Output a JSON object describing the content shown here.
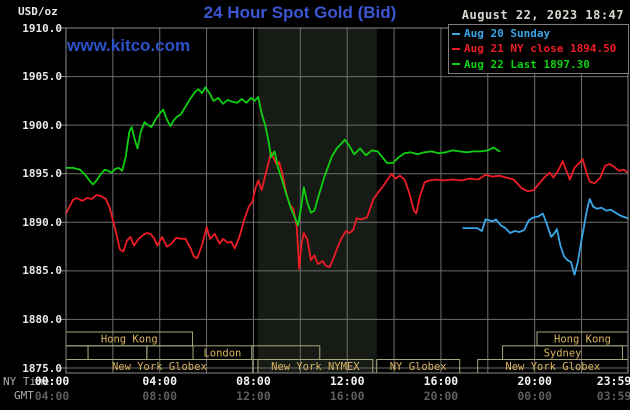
{
  "header": {
    "unit_label": "USD/oz",
    "title": "24 Hour Spot Gold (Bid)",
    "datetime": "August 22, 2023 18:47"
  },
  "watermark": "www.kitco.com",
  "legend": {
    "items": [
      {
        "label": "Aug 20 Sunday",
        "color": "#3aa6e8"
      },
      {
        "label": "Aug 21 NY close 1894.50",
        "color": "#ee1c25"
      },
      {
        "label": "Aug 22 Last 1897.30",
        "color": "#0fd00f"
      }
    ]
  },
  "y_axis": {
    "tick_labels": [
      "1910.0",
      "1905.0",
      "1900.0",
      "1895.0",
      "1890.0",
      "1885.0",
      "1880.0",
      "1875.0"
    ],
    "min": 1875,
    "max": 1910,
    "step": 5
  },
  "x_axis": {
    "ny_label": "NY Time",
    "gmt_label": "GMT",
    "tick_hours": [
      0,
      4,
      8,
      12,
      16,
      20,
      23.983
    ],
    "ny_times": [
      "00:00",
      "04:00",
      "08:00",
      "12:00",
      "16:00",
      "20:00",
      "23:59"
    ],
    "gmt_times": [
      "04:00",
      "08:00",
      "12:00",
      "16:00",
      "20:00",
      "00:00",
      "03:59"
    ]
  },
  "sessions": {
    "rows": [
      [
        {
          "label": "Hong Kong",
          "start_h": 0.0,
          "end_h": 5.4
        },
        {
          "label": "Hong Kong",
          "start_h": 20.1,
          "end_h": 23.98
        }
      ],
      [
        {
          "label": "",
          "start_h": 0.0,
          "end_h": 0.94
        },
        {
          "label": "",
          "start_h": 0.94,
          "end_h": 3.45
        },
        {
          "label": "",
          "start_h": 3.45,
          "end_h": 5.42
        },
        {
          "label": "London",
          "start_h": 5.42,
          "end_h": 7.93
        },
        {
          "label": "",
          "start_h": 7.93,
          "end_h": 10.83
        },
        {
          "label": "Sydney",
          "start_h": 18.63,
          "end_h": 23.75
        }
      ],
      [
        {
          "label": "New York Globex",
          "start_h": 0.0,
          "end_h": 7.97
        },
        {
          "label": "New York NYMEX",
          "start_h": 8.19,
          "end_h": 13.09
        },
        {
          "label": "NY Globex",
          "start_h": 13.26,
          "end_h": 16.8
        },
        {
          "label": "New York Globex",
          "start_h": 17.57,
          "end_h": 23.98
        }
      ]
    ]
  },
  "shaded_session_hours": [
    8.19,
    13.26
  ],
  "colors": {
    "background": "#000000",
    "grid": "#6e6e6e",
    "frame": "#8a8a8a",
    "shaded_band": "#161b15",
    "session_border": "#a8a87c",
    "session_text": "#d9b45e",
    "title_blue": "#3c56d2",
    "series_blue": "#3aa6e8",
    "series_red": "#ee1c25",
    "series_green": "#0fd00f"
  },
  "chart_data": {
    "type": "line",
    "title": "24 Hour Spot Gold (Bid)",
    "xlabel": "NY Time (hours 00:00-23:59)",
    "ylabel": "USD/oz",
    "xlim": [
      0,
      23.983
    ],
    "ylim": [
      1875,
      1910
    ],
    "grid": true,
    "legend_position": "top-right",
    "series": [
      {
        "name": "Aug 20 Sunday",
        "color": "#3aa6e8",
        "points": [
          [
            16.95,
            1889.4
          ],
          [
            17.25,
            1889.4
          ],
          [
            17.55,
            1889.4
          ],
          [
            17.75,
            1889.1
          ],
          [
            17.9,
            1890.3
          ],
          [
            18.05,
            1890.2
          ],
          [
            18.2,
            1890.1
          ],
          [
            18.35,
            1890.3
          ],
          [
            18.55,
            1889.7
          ],
          [
            18.75,
            1889.4
          ],
          [
            18.95,
            1888.9
          ],
          [
            19.15,
            1889.1
          ],
          [
            19.35,
            1889.0
          ],
          [
            19.55,
            1889.2
          ],
          [
            19.75,
            1890.2
          ],
          [
            19.95,
            1890.5
          ],
          [
            20.15,
            1890.6
          ],
          [
            20.35,
            1890.9
          ],
          [
            20.55,
            1889.6
          ],
          [
            20.7,
            1888.5
          ],
          [
            20.85,
            1888.9
          ],
          [
            20.95,
            1889.3
          ],
          [
            21.1,
            1887.6
          ],
          [
            21.25,
            1886.5
          ],
          [
            21.4,
            1886.1
          ],
          [
            21.55,
            1885.9
          ],
          [
            21.7,
            1884.6
          ],
          [
            21.85,
            1886.0
          ],
          [
            22.0,
            1888.2
          ],
          [
            22.1,
            1889.5
          ],
          [
            22.2,
            1890.9
          ],
          [
            22.35,
            1892.4
          ],
          [
            22.5,
            1891.6
          ],
          [
            22.65,
            1891.4
          ],
          [
            22.85,
            1891.5
          ],
          [
            23.05,
            1891.2
          ],
          [
            23.25,
            1891.3
          ],
          [
            23.45,
            1891.0
          ],
          [
            23.65,
            1890.7
          ],
          [
            23.98,
            1890.4
          ]
        ]
      },
      {
        "name": "Aug 21 NY close 1894.50",
        "color": "#ee1c25",
        "points": [
          [
            0.0,
            1890.9
          ],
          [
            0.15,
            1891.6
          ],
          [
            0.3,
            1892.3
          ],
          [
            0.45,
            1892.5
          ],
          [
            0.7,
            1892.2
          ],
          [
            0.9,
            1892.5
          ],
          [
            1.1,
            1892.4
          ],
          [
            1.3,
            1892.8
          ],
          [
            1.5,
            1892.7
          ],
          [
            1.7,
            1892.4
          ],
          [
            1.85,
            1891.6
          ],
          [
            2.0,
            1890.2
          ],
          [
            2.15,
            1888.8
          ],
          [
            2.3,
            1887.2
          ],
          [
            2.45,
            1887.0
          ],
          [
            2.6,
            1888.1
          ],
          [
            2.75,
            1888.5
          ],
          [
            2.9,
            1887.6
          ],
          [
            3.1,
            1888.3
          ],
          [
            3.3,
            1888.7
          ],
          [
            3.45,
            1888.9
          ],
          [
            3.6,
            1888.8
          ],
          [
            3.75,
            1888.4
          ],
          [
            3.9,
            1887.6
          ],
          [
            4.1,
            1888.5
          ],
          [
            4.3,
            1887.5
          ],
          [
            4.5,
            1887.8
          ],
          [
            4.7,
            1888.4
          ],
          [
            4.9,
            1888.3
          ],
          [
            5.1,
            1888.3
          ],
          [
            5.3,
            1887.4
          ],
          [
            5.45,
            1886.5
          ],
          [
            5.6,
            1886.3
          ],
          [
            5.8,
            1887.6
          ],
          [
            6.0,
            1889.5
          ],
          [
            6.15,
            1888.3
          ],
          [
            6.35,
            1888.8
          ],
          [
            6.55,
            1887.8
          ],
          [
            6.7,
            1888.3
          ],
          [
            6.9,
            1887.9
          ],
          [
            7.05,
            1888.0
          ],
          [
            7.2,
            1887.3
          ],
          [
            7.4,
            1888.5
          ],
          [
            7.6,
            1890.2
          ],
          [
            7.8,
            1891.6
          ],
          [
            7.95,
            1892.1
          ],
          [
            8.1,
            1893.6
          ],
          [
            8.2,
            1894.3
          ],
          [
            8.35,
            1893.3
          ],
          [
            8.5,
            1894.8
          ],
          [
            8.65,
            1896.2
          ],
          [
            8.75,
            1897.2
          ],
          [
            8.9,
            1896.4
          ],
          [
            9.0,
            1895.9
          ],
          [
            9.1,
            1896.2
          ],
          [
            9.25,
            1894.8
          ],
          [
            9.4,
            1893.0
          ],
          [
            9.55,
            1891.8
          ],
          [
            9.7,
            1891.4
          ],
          [
            9.85,
            1889.5
          ],
          [
            9.95,
            1885.2
          ],
          [
            10.05,
            1887.8
          ],
          [
            10.15,
            1888.9
          ],
          [
            10.3,
            1888.2
          ],
          [
            10.45,
            1886.1
          ],
          [
            10.6,
            1886.6
          ],
          [
            10.75,
            1885.7
          ],
          [
            10.95,
            1886.0
          ],
          [
            11.1,
            1885.5
          ],
          [
            11.25,
            1885.4
          ],
          [
            11.4,
            1886.2
          ],
          [
            11.6,
            1887.5
          ],
          [
            11.75,
            1888.3
          ],
          [
            11.95,
            1889.1
          ],
          [
            12.1,
            1888.9
          ],
          [
            12.25,
            1889.2
          ],
          [
            12.4,
            1890.4
          ],
          [
            12.6,
            1890.3
          ],
          [
            12.85,
            1890.5
          ],
          [
            13.1,
            1892.3
          ],
          [
            13.3,
            1893.0
          ],
          [
            13.5,
            1893.6
          ],
          [
            13.7,
            1894.3
          ],
          [
            13.9,
            1895.0
          ],
          [
            14.05,
            1894.5
          ],
          [
            14.25,
            1894.8
          ],
          [
            14.45,
            1894.4
          ],
          [
            14.65,
            1893.0
          ],
          [
            14.85,
            1891.2
          ],
          [
            14.95,
            1890.9
          ],
          [
            15.1,
            1892.6
          ],
          [
            15.3,
            1894.1
          ],
          [
            15.5,
            1894.3
          ],
          [
            15.8,
            1894.4
          ],
          [
            16.1,
            1894.3
          ],
          [
            16.5,
            1894.4
          ],
          [
            16.9,
            1894.3
          ],
          [
            17.2,
            1894.5
          ],
          [
            17.6,
            1894.4
          ],
          [
            17.9,
            1894.9
          ],
          [
            18.2,
            1894.7
          ],
          [
            18.5,
            1894.8
          ],
          [
            18.8,
            1894.6
          ],
          [
            19.1,
            1894.4
          ],
          [
            19.45,
            1893.5
          ],
          [
            19.7,
            1893.2
          ],
          [
            19.95,
            1893.3
          ],
          [
            20.2,
            1894.0
          ],
          [
            20.45,
            1894.7
          ],
          [
            20.65,
            1895.1
          ],
          [
            20.8,
            1894.6
          ],
          [
            21.0,
            1895.3
          ],
          [
            21.2,
            1896.3
          ],
          [
            21.35,
            1895.3
          ],
          [
            21.5,
            1894.4
          ],
          [
            21.7,
            1895.6
          ],
          [
            21.9,
            1896.1
          ],
          [
            22.05,
            1896.5
          ],
          [
            22.2,
            1895.2
          ],
          [
            22.35,
            1894.2
          ],
          [
            22.55,
            1894.0
          ],
          [
            22.8,
            1894.6
          ],
          [
            23.0,
            1895.8
          ],
          [
            23.2,
            1896.0
          ],
          [
            23.4,
            1895.7
          ],
          [
            23.6,
            1895.3
          ],
          [
            23.8,
            1895.4
          ],
          [
            23.98,
            1895.1
          ]
        ]
      },
      {
        "name": "Aug 22 Last 1897.30",
        "color": "#0fd00f",
        "points": [
          [
            0.0,
            1895.6
          ],
          [
            0.3,
            1895.6
          ],
          [
            0.6,
            1895.4
          ],
          [
            0.85,
            1894.8
          ],
          [
            1.0,
            1894.3
          ],
          [
            1.15,
            1893.9
          ],
          [
            1.3,
            1894.3
          ],
          [
            1.5,
            1895.0
          ],
          [
            1.65,
            1895.4
          ],
          [
            1.8,
            1895.3
          ],
          [
            1.95,
            1895.1
          ],
          [
            2.1,
            1895.5
          ],
          [
            2.25,
            1895.6
          ],
          [
            2.4,
            1895.3
          ],
          [
            2.55,
            1896.8
          ],
          [
            2.7,
            1899.3
          ],
          [
            2.8,
            1899.8
          ],
          [
            2.95,
            1898.4
          ],
          [
            3.05,
            1897.6
          ],
          [
            3.2,
            1899.4
          ],
          [
            3.35,
            1900.3
          ],
          [
            3.5,
            1900.0
          ],
          [
            3.65,
            1899.8
          ],
          [
            3.8,
            1900.5
          ],
          [
            4.0,
            1901.2
          ],
          [
            4.15,
            1901.6
          ],
          [
            4.3,
            1900.6
          ],
          [
            4.45,
            1899.9
          ],
          [
            4.6,
            1900.5
          ],
          [
            4.75,
            1900.9
          ],
          [
            4.9,
            1901.1
          ],
          [
            5.1,
            1901.9
          ],
          [
            5.3,
            1902.7
          ],
          [
            5.5,
            1903.4
          ],
          [
            5.65,
            1903.7
          ],
          [
            5.8,
            1903.3
          ],
          [
            5.95,
            1903.9
          ],
          [
            6.1,
            1903.4
          ],
          [
            6.3,
            1902.5
          ],
          [
            6.5,
            1902.8
          ],
          [
            6.7,
            1902.2
          ],
          [
            6.9,
            1902.6
          ],
          [
            7.1,
            1902.4
          ],
          [
            7.3,
            1902.3
          ],
          [
            7.5,
            1902.7
          ],
          [
            7.7,
            1902.3
          ],
          [
            7.9,
            1902.8
          ],
          [
            8.05,
            1902.5
          ],
          [
            8.2,
            1902.9
          ],
          [
            8.35,
            1901.2
          ],
          [
            8.5,
            1900.0
          ],
          [
            8.65,
            1898.3
          ],
          [
            8.75,
            1896.7
          ],
          [
            8.9,
            1897.3
          ],
          [
            9.05,
            1895.6
          ],
          [
            9.2,
            1894.5
          ],
          [
            9.4,
            1892.9
          ],
          [
            9.6,
            1891.4
          ],
          [
            9.75,
            1890.6
          ],
          [
            9.9,
            1889.7
          ],
          [
            10.05,
            1891.8
          ],
          [
            10.15,
            1893.6
          ],
          [
            10.3,
            1892.0
          ],
          [
            10.45,
            1891.0
          ],
          [
            10.6,
            1891.2
          ],
          [
            10.8,
            1892.9
          ],
          [
            11.0,
            1894.5
          ],
          [
            11.15,
            1895.5
          ],
          [
            11.35,
            1896.8
          ],
          [
            11.55,
            1897.6
          ],
          [
            11.75,
            1898.1
          ],
          [
            11.9,
            1898.5
          ],
          [
            12.05,
            1898.0
          ],
          [
            12.3,
            1897.0
          ],
          [
            12.55,
            1897.6
          ],
          [
            12.8,
            1896.9
          ],
          [
            13.05,
            1897.4
          ],
          [
            13.3,
            1897.3
          ],
          [
            13.5,
            1896.7
          ],
          [
            13.7,
            1896.1
          ],
          [
            13.95,
            1896.1
          ],
          [
            14.2,
            1896.7
          ],
          [
            14.45,
            1897.1
          ],
          [
            14.7,
            1897.2
          ],
          [
            15.0,
            1897.0
          ],
          [
            15.3,
            1897.2
          ],
          [
            15.6,
            1897.3
          ],
          [
            15.9,
            1897.1
          ],
          [
            16.2,
            1897.2
          ],
          [
            16.5,
            1897.4
          ],
          [
            16.8,
            1897.3
          ],
          [
            17.1,
            1897.2
          ],
          [
            17.4,
            1897.3
          ],
          [
            17.7,
            1897.3
          ],
          [
            18.0,
            1897.4
          ],
          [
            18.25,
            1897.7
          ],
          [
            18.5,
            1897.3
          ]
        ]
      }
    ]
  }
}
